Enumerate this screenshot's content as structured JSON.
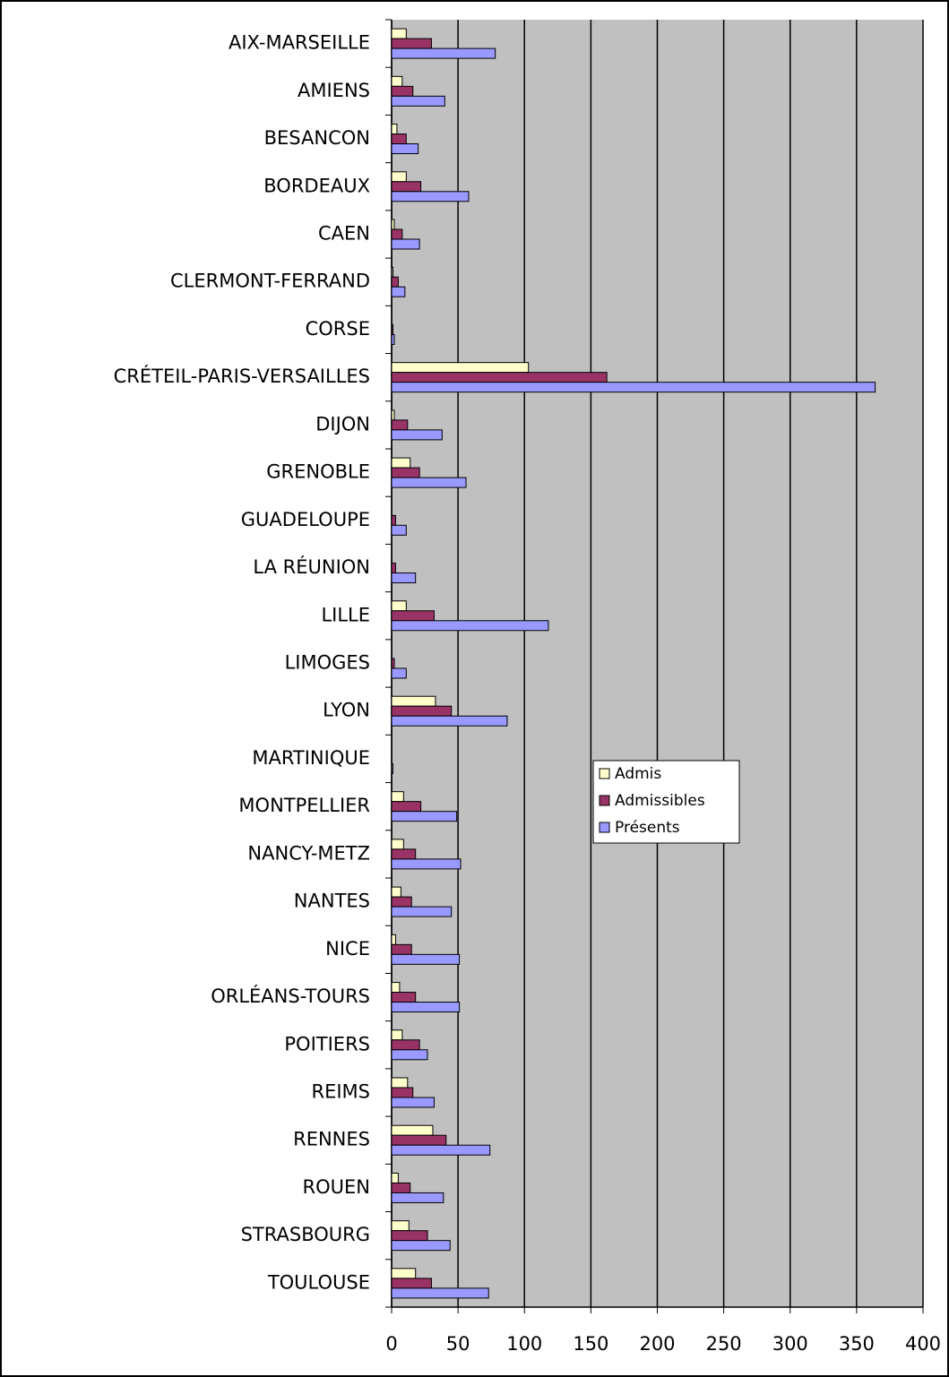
{
  "chart_data": {
    "type": "barh",
    "categories": [
      "AIX-MARSEILLE",
      "AMIENS",
      "BESANCON",
      "BORDEAUX",
      "CAEN",
      "CLERMONT-FERRAND",
      "CORSE",
      "CRÉTEIL-PARIS-VERSAILLES",
      "DIJON",
      "GRENOBLE",
      "GUADELOUPE",
      "LA RÉUNION",
      "LILLE",
      "LIMOGES",
      "LYON",
      "MARTINIQUE",
      "MONTPELLIER",
      "NANCY-METZ",
      "NANTES",
      "NICE",
      "ORLÉANS-TOURS",
      "POITIERS",
      "REIMS",
      "RENNES",
      "ROUEN",
      "STRASBOURG",
      "TOULOUSE"
    ],
    "series": [
      {
        "name": "Admis",
        "color": "#ffffcc",
        "values": [
          11,
          8,
          4,
          11,
          2,
          1,
          0,
          103,
          2,
          14,
          0,
          0,
          11,
          0,
          33,
          0,
          9,
          9,
          7,
          3,
          6,
          8,
          12,
          31,
          5,
          13,
          18
        ]
      },
      {
        "name": "Admissibles",
        "color": "#993366",
        "values": [
          30,
          16,
          11,
          22,
          8,
          5,
          1,
          162,
          12,
          21,
          3,
          3,
          32,
          2,
          45,
          0,
          22,
          18,
          15,
          15,
          18,
          21,
          16,
          41,
          14,
          27,
          30
        ]
      },
      {
        "name": "Présents",
        "color": "#9999ff",
        "values": [
          78,
          40,
          20,
          58,
          21,
          10,
          2,
          364,
          38,
          56,
          11,
          18,
          118,
          11,
          87,
          1,
          49,
          52,
          45,
          51,
          51,
          27,
          32,
          74,
          39,
          44,
          73
        ]
      }
    ],
    "xlim": [
      0,
      400
    ],
    "xticks": [
      0,
      50,
      100,
      150,
      200,
      250,
      300,
      350,
      400
    ],
    "grid": true,
    "legend": "right"
  }
}
